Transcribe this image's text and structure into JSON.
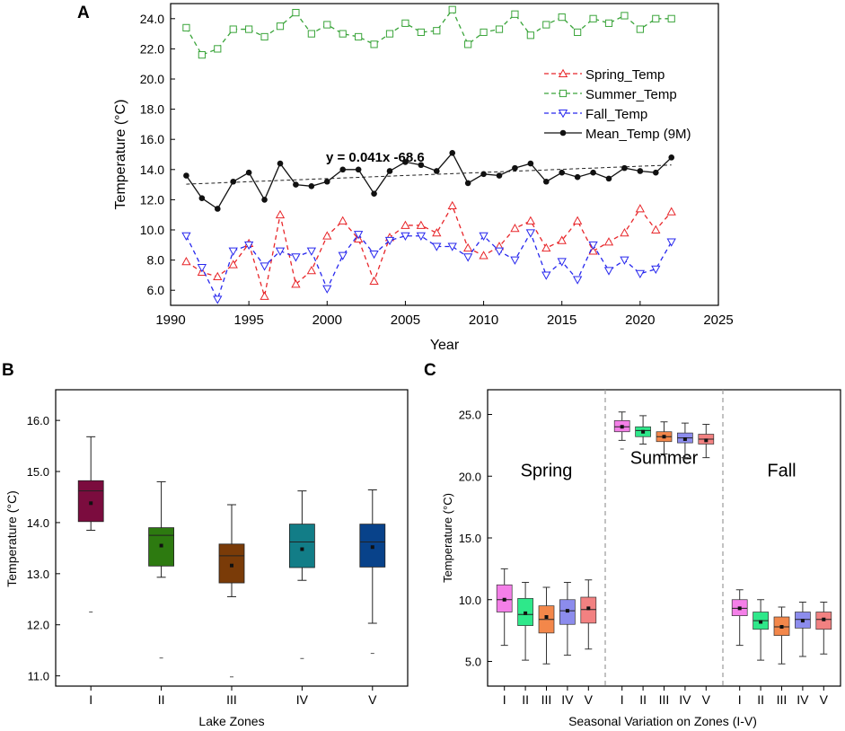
{
  "chart_data": [
    {
      "panel": "A",
      "type": "line",
      "xlabel": "Year",
      "ylabel": "Temperature (°C)",
      "xlim": [
        1990,
        2025
      ],
      "ylim": [
        5,
        25
      ],
      "xticks": [
        1990,
        1995,
        2000,
        2005,
        2010,
        2015,
        2020,
        2025
      ],
      "xtick_labels": [
        "1990",
        "1995",
        "2000",
        "2005",
        "2010",
        "2015",
        "2020",
        "2025"
      ],
      "yticks": [
        6,
        8,
        10,
        12,
        14,
        16,
        18,
        20,
        22,
        24
      ],
      "ytick_labels": [
        "6.0",
        "8.0",
        "10.0",
        "12.0",
        "14.0",
        "16.0",
        "18.0",
        "20.0",
        "22.0",
        "24.0"
      ],
      "x": [
        1991,
        1992,
        1993,
        1994,
        1995,
        1996,
        1997,
        1998,
        1999,
        2000,
        2001,
        2002,
        2003,
        2004,
        2005,
        2006,
        2007,
        2008,
        2009,
        2010,
        2011,
        2012,
        2013,
        2014,
        2015,
        2016,
        2017,
        2018,
        2019,
        2020,
        2021,
        2022
      ],
      "series": [
        {
          "name": "Spring_Temp",
          "color": "#e8262a",
          "marker": "triangle-up",
          "dashed": true,
          "values": [
            7.9,
            7.2,
            6.9,
            7.7,
            9.1,
            5.6,
            11.0,
            6.4,
            7.3,
            9.6,
            10.6,
            9.4,
            6.6,
            9.5,
            10.3,
            10.3,
            9.8,
            11.6,
            8.8,
            8.3,
            8.9,
            10.1,
            10.6,
            8.8,
            9.3,
            10.6,
            8.6,
            9.2,
            9.8,
            11.4,
            10.0,
            11.2
          ]
        },
        {
          "name": "Summer_Temp",
          "color": "#3aa43a",
          "marker": "square",
          "dashed": true,
          "values": [
            23.4,
            21.6,
            22.0,
            23.3,
            23.3,
            22.8,
            23.5,
            24.4,
            23.0,
            23.6,
            23.0,
            22.8,
            22.3,
            23.0,
            23.7,
            23.1,
            23.2,
            24.6,
            22.3,
            23.1,
            23.3,
            24.3,
            22.9,
            23.6,
            24.1,
            23.1,
            24.0,
            23.7,
            24.2,
            23.3,
            24.0,
            24.0
          ]
        },
        {
          "name": "Fall_Temp",
          "color": "#2727ee",
          "marker": "triangle-down",
          "dashed": true,
          "values": [
            9.6,
            7.5,
            5.4,
            8.6,
            9.0,
            7.6,
            8.6,
            8.2,
            8.6,
            6.1,
            8.3,
            9.7,
            8.4,
            9.3,
            9.6,
            9.6,
            8.9,
            8.9,
            8.2,
            9.6,
            8.6,
            8.0,
            9.8,
            7.0,
            7.9,
            6.7,
            9.0,
            7.3,
            8.0,
            7.1,
            7.4,
            9.2
          ]
        },
        {
          "name": "Mean_Temp (9M)",
          "color": "#111111",
          "marker": "circle",
          "dashed": false,
          "values": [
            13.6,
            12.1,
            11.4,
            13.2,
            13.8,
            12.0,
            14.4,
            13.0,
            12.9,
            13.2,
            14.0,
            14.0,
            12.4,
            13.9,
            14.5,
            14.3,
            13.9,
            15.1,
            13.1,
            13.7,
            13.6,
            14.1,
            14.4,
            13.2,
            13.8,
            13.5,
            13.8,
            13.4,
            14.1,
            13.9,
            13.8,
            14.8
          ]
        }
      ],
      "trend": {
        "slope": 0.041,
        "intercept": -68.6,
        "label": "y = 0.041x  -68.6"
      }
    },
    {
      "panel": "B",
      "type": "box",
      "xlabel": "Lake Zones",
      "ylabel": "Temperature (°C)",
      "ylim": [
        10.8,
        16.6
      ],
      "yticks": [
        11,
        12,
        13,
        14,
        15,
        16
      ],
      "ytick_labels": [
        "11.0",
        "12.0",
        "13.0",
        "14.0",
        "15.0",
        "16.0"
      ],
      "categories": [
        "I",
        "II",
        "III",
        "IV",
        "V"
      ],
      "colors": [
        "#7b0c3e",
        "#2d7a10",
        "#7a3b08",
        "#127d87",
        "#08428a"
      ],
      "boxes": [
        {
          "min": 13.85,
          "q1": 14.02,
          "median": 14.62,
          "q3": 14.82,
          "max": 15.68,
          "mean": 14.38,
          "outlier": 12.25
        },
        {
          "min": 12.93,
          "q1": 13.15,
          "median": 13.75,
          "q3": 13.9,
          "max": 14.8,
          "mean": 13.55,
          "outlier": 11.35
        },
        {
          "min": 12.55,
          "q1": 12.82,
          "median": 13.35,
          "q3": 13.58,
          "max": 14.35,
          "mean": 13.16,
          "outlier": 10.98
        },
        {
          "min": 12.87,
          "q1": 13.12,
          "median": 13.62,
          "q3": 13.97,
          "max": 14.62,
          "mean": 13.48,
          "outlier": 11.34
        },
        {
          "min": 12.03,
          "q1": 13.13,
          "median": 13.62,
          "q3": 13.97,
          "max": 14.64,
          "mean": 13.52,
          "outlier": 11.44
        }
      ]
    },
    {
      "panel": "C",
      "type": "box",
      "xlabel": "Seasonal Variation on Zones (I-V)",
      "ylabel": "Temperature (°C)",
      "ylim": [
        3,
        27
      ],
      "yticks": [
        5,
        10,
        15,
        20,
        25
      ],
      "ytick_labels": [
        "5.0",
        "10.0",
        "15.0",
        "20.0",
        "25.0"
      ],
      "categories": [
        "I",
        "II",
        "III",
        "IV",
        "V"
      ],
      "colors": [
        "#f47fe8",
        "#2ee88a",
        "#f3874a",
        "#8c8ced",
        "#f28181"
      ],
      "groups": [
        {
          "name": "Spring",
          "boxes": [
            {
              "min": 6.3,
              "q1": 9.0,
              "median": 10.0,
              "q3": 11.2,
              "max": 12.5,
              "mean": 10.0
            },
            {
              "min": 5.1,
              "q1": 7.9,
              "median": 8.8,
              "q3": 10.1,
              "max": 11.4,
              "mean": 8.9
            },
            {
              "min": 4.8,
              "q1": 7.3,
              "median": 8.4,
              "q3": 9.5,
              "max": 11.0,
              "mean": 8.6
            },
            {
              "min": 5.5,
              "q1": 8.0,
              "median": 9.1,
              "q3": 10.0,
              "max": 11.4,
              "mean": 9.1
            },
            {
              "min": 6.0,
              "q1": 8.1,
              "median": 9.2,
              "q3": 10.2,
              "max": 11.6,
              "mean": 9.3
            }
          ]
        },
        {
          "name": "Summer",
          "boxes": [
            {
              "min": 22.9,
              "q1": 23.6,
              "median": 24.0,
              "q3": 24.5,
              "max": 25.2,
              "mean": 24.0,
              "outlier": 22.2
            },
            {
              "min": 22.6,
              "q1": 23.2,
              "median": 23.7,
              "q3": 24.0,
              "max": 24.9,
              "mean": 23.6
            },
            {
              "min": 21.8,
              "q1": 22.8,
              "median": 23.2,
              "q3": 23.6,
              "max": 24.4,
              "mean": 23.2
            },
            {
              "min": 21.5,
              "q1": 22.7,
              "median": 23.1,
              "q3": 23.5,
              "max": 24.3,
              "mean": 23.0,
              "outlier": 21.4
            },
            {
              "min": 21.5,
              "q1": 22.6,
              "median": 23.0,
              "q3": 23.4,
              "max": 24.2,
              "mean": 22.9
            }
          ]
        },
        {
          "name": "Fall",
          "boxes": [
            {
              "min": 6.3,
              "q1": 8.7,
              "median": 9.3,
              "q3": 10.0,
              "max": 10.8,
              "mean": 9.3
            },
            {
              "min": 5.1,
              "q1": 7.6,
              "median": 8.3,
              "q3": 9.0,
              "max": 10.0,
              "mean": 8.2
            },
            {
              "min": 4.8,
              "q1": 7.1,
              "median": 7.8,
              "q3": 8.6,
              "max": 9.4,
              "mean": 7.8
            },
            {
              "min": 5.4,
              "q1": 7.7,
              "median": 8.4,
              "q3": 9.0,
              "max": 9.8,
              "mean": 8.3
            },
            {
              "min": 5.6,
              "q1": 7.6,
              "median": 8.4,
              "q3": 9.0,
              "max": 9.8,
              "mean": 8.4
            }
          ]
        }
      ]
    }
  ]
}
